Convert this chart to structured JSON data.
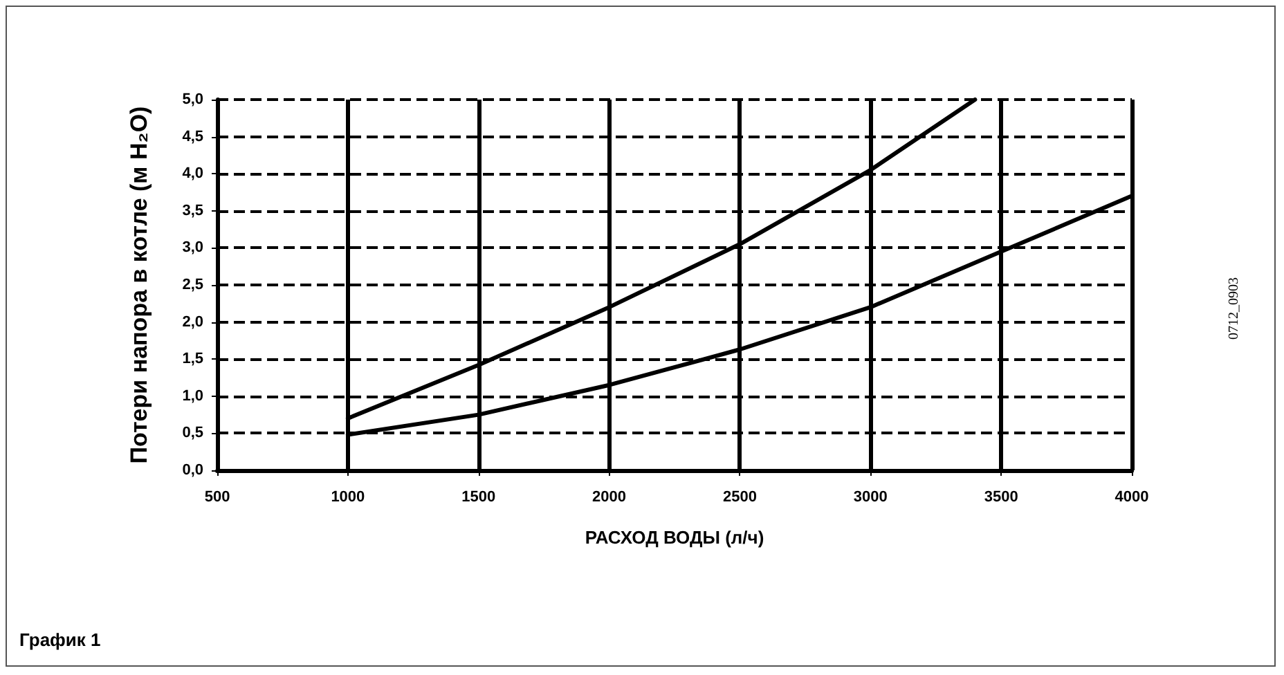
{
  "chart_data": {
    "type": "line",
    "xlabel": "РАСХОД ВОДЫ (л/ч)",
    "ylabel": "Потери напора в котле (м H₂O)",
    "annotations": [
      "График 1",
      "0712_0903"
    ],
    "series": [
      {
        "color": "#000000",
        "x": [
          1000,
          1500,
          2000,
          2500,
          3000,
          3400
        ],
        "values": [
          0.7,
          1.42,
          2.2,
          3.05,
          4.05,
          5.0
        ]
      },
      {
        "color": "#000000",
        "x": [
          1000,
          1500,
          2000,
          2500,
          3000,
          3500,
          4000
        ],
        "values": [
          0.48,
          0.75,
          1.15,
          1.63,
          2.2,
          2.95,
          3.7
        ]
      }
    ],
    "xlim": [
      500,
      4000
    ],
    "xticks": [
      500,
      1000,
      1500,
      2000,
      2500,
      3000,
      3500,
      4000
    ],
    "ylim": [
      0,
      5
    ],
    "yticks": [
      {
        "value": 0,
        "label": "0,0"
      },
      {
        "value": 0.5,
        "label": "0,5"
      },
      {
        "value": 1,
        "label": "1,0"
      },
      {
        "value": 1.5,
        "label": "1,5"
      },
      {
        "value": 2,
        "label": "2,0"
      },
      {
        "value": 2.5,
        "label": "2,5"
      },
      {
        "value": 3,
        "label": "3,0"
      },
      {
        "value": 3.5,
        "label": "3,5"
      },
      {
        "value": 4,
        "label": "4,0"
      },
      {
        "value": 4.5,
        "label": "4,5"
      },
      {
        "value": 5,
        "label": "5,0"
      }
    ],
    "grid": true,
    "marker": "none",
    "line_style": "solid"
  }
}
